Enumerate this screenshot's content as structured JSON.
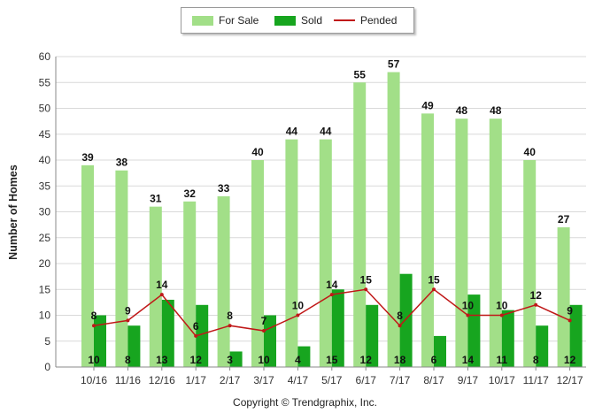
{
  "chart_data": {
    "type": "bar",
    "categories": [
      "10/16",
      "11/16",
      "12/16",
      "1/17",
      "2/17",
      "3/17",
      "4/17",
      "5/17",
      "6/17",
      "7/17",
      "8/17",
      "9/17",
      "10/17",
      "11/17",
      "12/17"
    ],
    "series": [
      {
        "name": "For Sale",
        "type": "bar",
        "color": "#a2df88",
        "values": [
          39,
          38,
          31,
          32,
          33,
          40,
          44,
          44,
          55,
          57,
          49,
          48,
          48,
          40,
          27
        ]
      },
      {
        "name": "Sold",
        "type": "bar",
        "color": "#17a51f",
        "values": [
          10,
          8,
          13,
          12,
          3,
          10,
          4,
          15,
          12,
          18,
          6,
          14,
          11,
          8,
          12
        ]
      },
      {
        "name": "Pended",
        "type": "line",
        "color": "#c01818",
        "values": [
          8,
          9,
          14,
          6,
          8,
          7,
          10,
          14,
          15,
          8,
          15,
          10,
          10,
          12,
          9
        ]
      }
    ],
    "ylabel": "Number of Homes",
    "yticks": [
      0,
      5,
      10,
      15,
      20,
      25,
      30,
      35,
      40,
      45,
      50,
      55,
      60
    ],
    "ylim": [
      0,
      60
    ],
    "grid": true,
    "legend_position": "top-center"
  },
  "legend": {
    "for_sale": "For Sale",
    "sold": "Sold",
    "pended": "Pended"
  },
  "footer": {
    "copyright": "Copyright © Trendgraphix, Inc."
  }
}
